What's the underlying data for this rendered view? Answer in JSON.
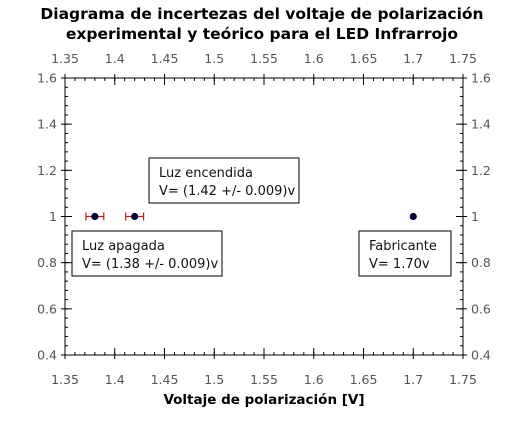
{
  "chart_data": {
    "type": "scatter",
    "title": [
      "Diagrama de incertezas del voltaje de polarización",
      "experimental y teórico para el LED Infrarrojo"
    ],
    "xlabel": "Voltaje de polarización [V]",
    "ylabel": "",
    "xlim": [
      1.35,
      1.75
    ],
    "ylim": [
      0.4,
      1.6
    ],
    "xticks": [
      "1.35",
      "1.4",
      "1.45",
      "1.5",
      "1.55",
      "1.6",
      "1.65",
      "1.7",
      "1.75"
    ],
    "yticks": [
      "0.4",
      "0.6",
      "0.8",
      "1",
      "1.2",
      "1.4",
      "1.6"
    ],
    "x_minor_step": 0.01,
    "y_minor_step": 0.04,
    "grid": false,
    "colors": {
      "point": "#000033",
      "errorbar": "#b22222"
    },
    "points": [
      {
        "x": 1.38,
        "y": 1.0,
        "xerr": 0.009
      },
      {
        "x": 1.42,
        "y": 1.0,
        "xerr": 0.009
      },
      {
        "x": 1.7,
        "y": 1.0,
        "xerr": 0
      }
    ],
    "annotations": [
      {
        "lines": [
          "Luz encendida",
          "V= (1.42 +/- 0.009)v"
        ]
      },
      {
        "lines": [
          "Luz apagada",
          "V= (1.38 +/- 0.009)v"
        ]
      },
      {
        "lines": [
          "Fabricante",
          "V= 1.70v"
        ]
      }
    ]
  }
}
